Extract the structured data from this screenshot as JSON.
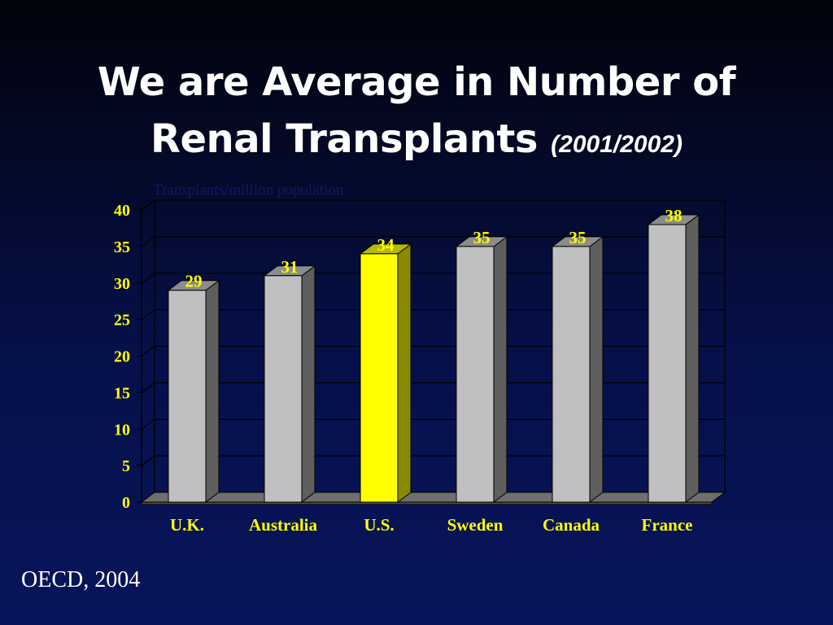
{
  "slide": {
    "title_line1": "We are Average in Number of",
    "title_line2": "Renal Transplants",
    "title_year": "(2001/2002)",
    "source": "OECD, 2004"
  },
  "colors": {
    "background_top": "#02030b",
    "background_bottom": "#08155c",
    "bar_default": "#c0c0c0",
    "bar_highlight": "#ffff00",
    "label_color": "#ffff00",
    "title_color": "#ffffff"
  },
  "chart_data": {
    "type": "bar",
    "ylabel": "Transplants/million population",
    "categories": [
      "U.K.",
      "Australia",
      "U.S.",
      "Sweden",
      "Canada",
      "France"
    ],
    "values": [
      29,
      31,
      34,
      35,
      35,
      38
    ],
    "data_labels": [
      "29",
      "31",
      "34",
      "35",
      "35",
      "38"
    ],
    "highlight": "U.S.",
    "ylim": [
      0,
      40
    ],
    "yticks": [
      0,
      5,
      10,
      15,
      20,
      25,
      30,
      35,
      40
    ],
    "grid": true,
    "style": "3d"
  }
}
